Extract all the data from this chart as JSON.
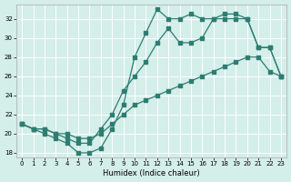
{
  "xlabel": "Humidex (Indice chaleur)",
  "bg_color": "#d4eeea",
  "line_color": "#2e7d72",
  "grid_color": "#ffffff",
  "xlim": [
    -0.5,
    23.5
  ],
  "ylim": [
    17.5,
    33.5
  ],
  "xticks": [
    0,
    1,
    2,
    3,
    4,
    5,
    6,
    7,
    8,
    9,
    10,
    11,
    12,
    13,
    14,
    15,
    16,
    17,
    18,
    19,
    20,
    21,
    22,
    23
  ],
  "yticks": [
    18,
    20,
    22,
    24,
    26,
    28,
    30,
    32
  ],
  "line1_x": [
    0,
    1,
    2,
    3,
    4,
    5,
    6,
    7,
    8,
    9,
    10,
    11,
    12,
    13,
    14,
    15,
    16,
    17,
    18,
    19,
    20,
    21,
    22,
    23
  ],
  "line1_y": [
    21.0,
    20.5,
    20.0,
    19.5,
    19.0,
    18.0,
    18.0,
    18.5,
    20.5,
    23.0,
    28.0,
    30.5,
    33.0,
    32.0,
    32.0,
    32.5,
    32.0,
    32.0,
    32.0,
    32.0,
    32.0,
    29.0,
    29.0,
    26.0
  ],
  "line2_x": [
    0,
    1,
    2,
    3,
    4,
    5,
    6,
    7,
    8,
    9,
    10,
    11,
    12,
    13,
    14,
    15,
    16,
    17,
    18,
    19,
    20,
    21,
    22,
    23
  ],
  "line2_y": [
    21.0,
    20.5,
    20.5,
    20.0,
    19.5,
    19.0,
    19.0,
    20.5,
    22.0,
    24.5,
    26.0,
    27.5,
    29.5,
    31.0,
    29.5,
    29.5,
    30.0,
    32.0,
    32.5,
    32.5,
    32.0,
    29.0,
    29.0,
    26.0
  ],
  "line3_x": [
    0,
    1,
    2,
    3,
    4,
    5,
    6,
    7,
    8,
    9,
    10,
    11,
    12,
    13,
    14,
    15,
    16,
    17,
    18,
    19,
    20,
    21,
    22,
    23
  ],
  "line3_y": [
    21.0,
    20.5,
    20.5,
    20.0,
    20.0,
    19.5,
    19.5,
    20.0,
    21.0,
    22.0,
    23.0,
    23.5,
    24.0,
    24.5,
    25.0,
    25.5,
    26.0,
    26.5,
    27.0,
    27.5,
    28.0,
    28.0,
    26.5,
    26.0
  ]
}
